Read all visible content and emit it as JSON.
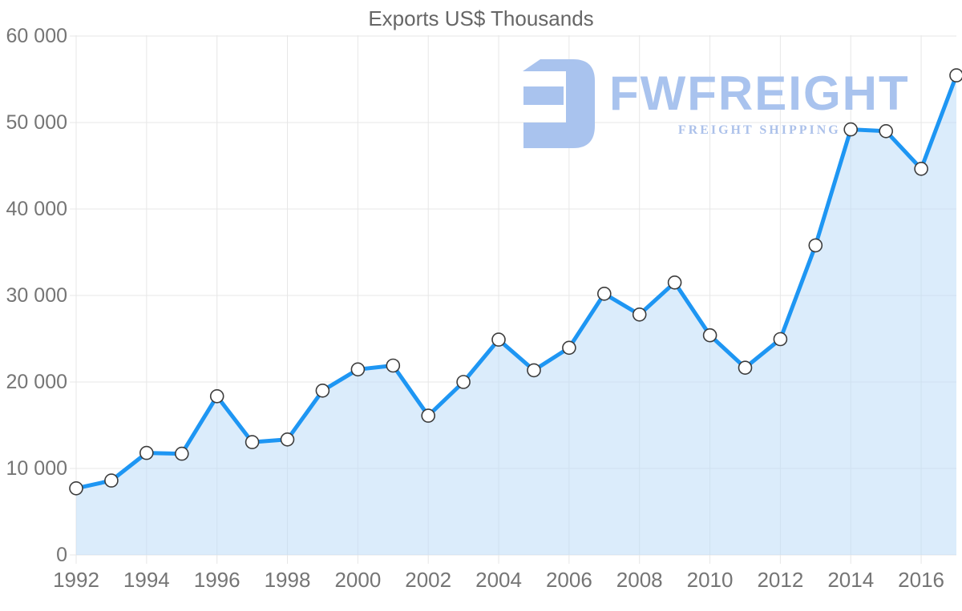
{
  "page": {
    "title": "Exports US$ Thousands"
  },
  "watermark": {
    "brand": "FWFREIGHT",
    "tagline": "FREIGHT SHIPPING",
    "logo_icon": "fwfreight-monogram",
    "color": "#a9c3ee"
  },
  "colors": {
    "line": "#1e96f3",
    "area_fill": "rgba(190,220,248,0.55)",
    "marker_fill": "#ffffff",
    "marker_stroke": "#3c3c3c",
    "grid": "#e7e7e7",
    "axis_text": "#757575",
    "title_text": "#666666",
    "logo": "#a9c3ee"
  },
  "chart_data": {
    "type": "area",
    "title": "Exports US$ Thousands",
    "xlabel": "",
    "ylabel": "",
    "grid": true,
    "legend": false,
    "marker": "circle",
    "ylim": [
      0,
      60000
    ],
    "x": [
      1992,
      1993,
      1994,
      1995,
      1996,
      1997,
      1998,
      1999,
      2000,
      2001,
      2002,
      2003,
      2004,
      2005,
      2006,
      2007,
      2008,
      2009,
      2010,
      2011,
      2012,
      2013,
      2014,
      2015,
      2016,
      2017
    ],
    "values": [
      7700,
      8600,
      11800,
      11700,
      18350,
      13050,
      13350,
      19000,
      21450,
      21900,
      16100,
      20000,
      24900,
      21350,
      23950,
      30200,
      27800,
      31500,
      25400,
      21650,
      24950,
      35800,
      49200,
      49000,
      44650,
      55450
    ],
    "y_ticks": [
      0,
      10000,
      20000,
      30000,
      40000,
      50000,
      60000
    ],
    "y_tick_labels": [
      "0",
      "10 000",
      "20 000",
      "30 000",
      "40 000",
      "50 000",
      "60 000"
    ],
    "x_tick_years": [
      1992,
      1994,
      1996,
      1998,
      2000,
      2002,
      2004,
      2006,
      2008,
      2010,
      2012,
      2014,
      2016
    ],
    "x_tick_labels": [
      "1992",
      "1994",
      "1996",
      "1998",
      "2000",
      "2002",
      "2004",
      "2006",
      "2008",
      "2010",
      "2012",
      "2014",
      "2016"
    ]
  }
}
